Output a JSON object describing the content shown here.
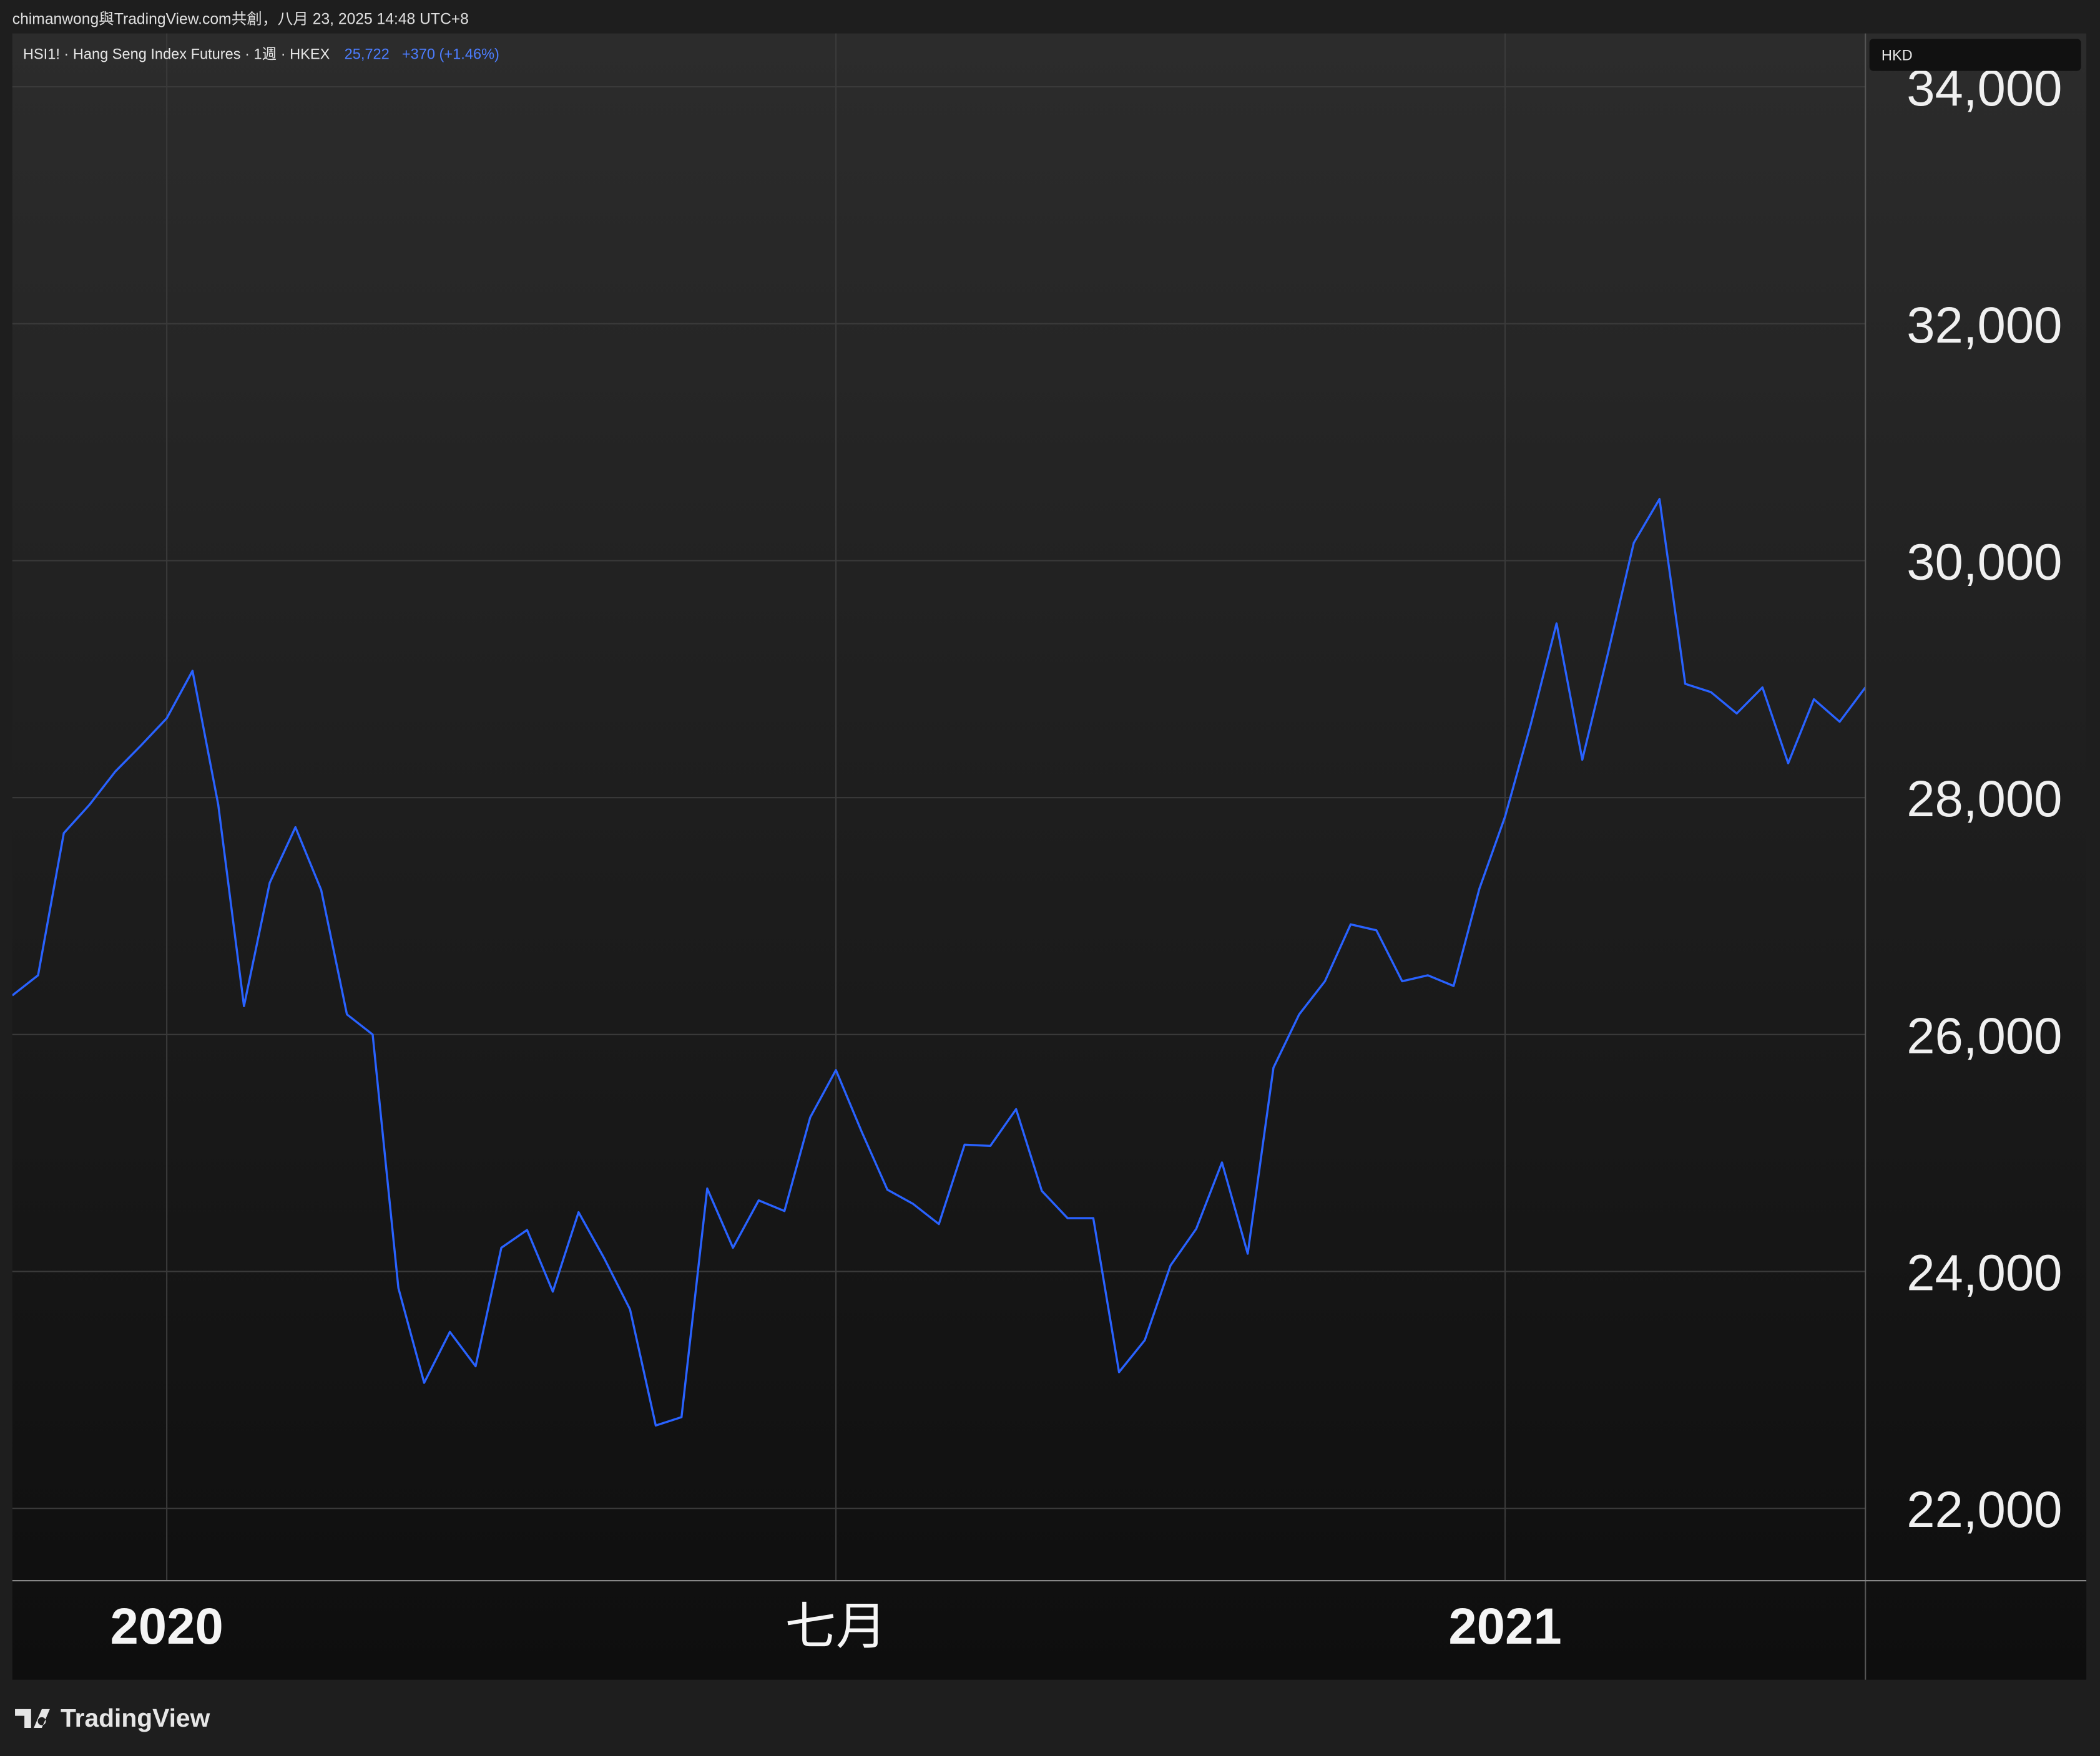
{
  "header": {
    "attribution": "chimanwong與TradingView.com共創，八月 23, 2025 14:48 UTC+8",
    "symbol": "HSI1! · Hang Seng Index Futures · 1週 · HKEX",
    "last_price": "25,722",
    "change": "+370 (+1.46%)",
    "currency": "HKD",
    "brand": "TradingView"
  },
  "chart_data": {
    "type": "line",
    "categories": [
      null,
      null,
      null,
      null,
      null,
      null,
      "2020",
      null,
      null,
      null,
      null,
      null,
      null,
      null,
      null,
      null,
      null,
      null,
      null,
      null,
      null,
      null,
      null,
      null,
      null,
      null,
      null,
      null,
      null,
      null,
      null,
      null,
      "七月",
      null,
      null,
      null,
      null,
      null,
      null,
      null,
      null,
      null,
      null,
      null,
      null,
      null,
      null,
      null,
      null,
      null,
      null,
      null,
      null,
      null,
      null,
      null,
      null,
      null,
      "2021",
      null,
      null,
      null,
      null,
      null,
      null,
      null,
      null,
      null,
      null,
      null,
      null,
      null,
      null
    ],
    "series": [
      {
        "name": "HSI1!",
        "color": "#2962ff",
        "values": [
          26330,
          26500,
          27700,
          27940,
          28220,
          28440,
          28670,
          29070,
          27940,
          26240,
          27280,
          27750,
          27220,
          26170,
          26000,
          23860,
          23060,
          23490,
          23200,
          24200,
          24350,
          23830,
          24500,
          24110,
          23680,
          22700,
          22770,
          24700,
          24200,
          24600,
          24510,
          25300,
          25700,
          25180,
          24690,
          24570,
          24400,
          25070,
          25060,
          25370,
          24680,
          24450,
          24450,
          23150,
          23420,
          24050,
          24360,
          24920,
          24150,
          25720,
          26170,
          26450,
          26930,
          26880,
          26450,
          26500,
          26410,
          27230,
          27840,
          28620,
          29470,
          28320,
          29220,
          30150,
          30520,
          28960,
          28890,
          28710,
          28930,
          28290,
          28830,
          28640,
          28930
        ]
      }
    ],
    "ylim": [
      21390,
      34450
    ],
    "yticks": [
      {
        "value": 22000,
        "label": "22,000"
      },
      {
        "value": 24000,
        "label": "24,000"
      },
      {
        "value": 26000,
        "label": "26,000"
      },
      {
        "value": 28000,
        "label": "28,000"
      },
      {
        "value": 30000,
        "label": "30,000"
      },
      {
        "value": 32000,
        "label": "32,000"
      },
      {
        "value": 34000,
        "label": "34,000"
      }
    ],
    "grid": true
  }
}
